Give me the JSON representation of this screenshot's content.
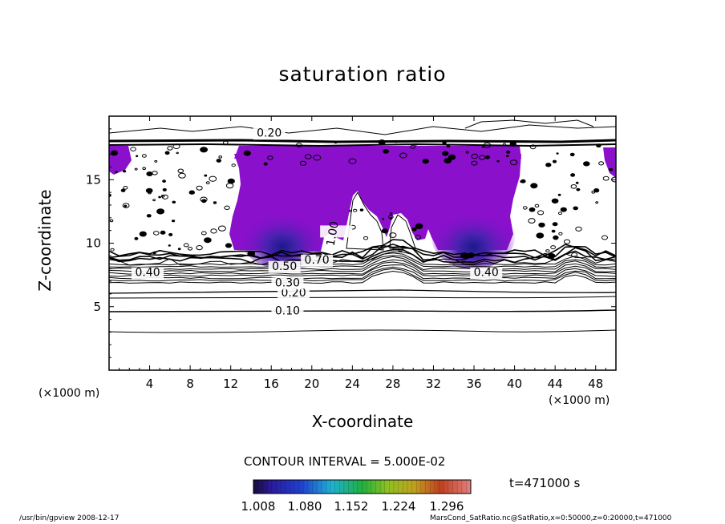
{
  "chart_data": {
    "type": "contour",
    "title": "saturation ratio",
    "xlabel": "X-coordinate",
    "ylabel": "Z-coordinate",
    "x_unit": "(×1000 m)",
    "z_unit": "(×1000 m)",
    "xlim": [
      0,
      50
    ],
    "ylim": [
      0,
      20
    ],
    "x_ticks": [
      4,
      8,
      12,
      16,
      20,
      24,
      28,
      32,
      36,
      40,
      44,
      48
    ],
    "y_ticks": [
      5,
      10,
      15
    ],
    "contour_interval_text": "CONTOUR INTERVAL = 5.000E-02",
    "contour_labels": [
      {
        "text": "0.10",
        "x": 17.6,
        "z": 4.4
      },
      {
        "text": "0.20",
        "x": 18.2,
        "z": 5.8
      },
      {
        "text": "0.30",
        "x": 17.6,
        "z": 6.6
      },
      {
        "text": "0.40",
        "x": 3.8,
        "z": 7.4
      },
      {
        "text": "0.40",
        "x": 37.2,
        "z": 7.4
      },
      {
        "text": "0.50",
        "x": 17.3,
        "z": 7.9
      },
      {
        "text": "0.70",
        "x": 20.5,
        "z": 8.4
      },
      {
        "text": "0.20",
        "x": 15.8,
        "z": 18.4
      },
      {
        "text": "1.00",
        "x": 22.4,
        "z": 10.7
      }
    ],
    "colorbar": {
      "tick_labels": [
        "1.008",
        "1.080",
        "1.152",
        "1.224",
        "1.296"
      ],
      "range": [
        1.008,
        1.35
      ]
    },
    "time_label": "t=471000 s",
    "colors": {
      "supersaturation_fill": "#8a10cc",
      "core_fill": "#2a2aa0",
      "contour_line": "#000000"
    }
  },
  "footer": {
    "left": "/usr/bin/gpview   2008-12-17",
    "right": "MarsCond_SatRatio.nc@SatRatio,x=0:50000,z=0:20000,t=471000"
  }
}
